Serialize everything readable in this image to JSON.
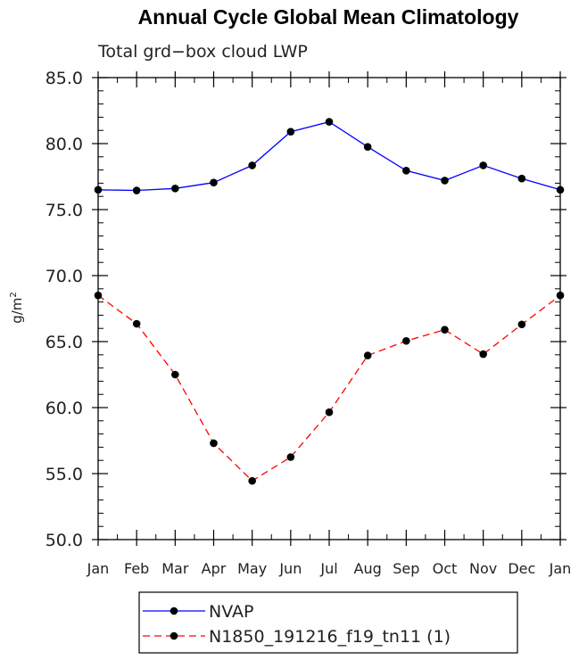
{
  "chart_data": {
    "type": "line",
    "title": "Annual Cycle Global Mean Climatology",
    "subtitle": "Total grd−box cloud LWP",
    "ylabel_base": "g/m",
    "ylabel_sup": "2",
    "xlabel": "",
    "categories": [
      "Jan",
      "Feb",
      "Mar",
      "Apr",
      "May",
      "Jun",
      "Jul",
      "Aug",
      "Sep",
      "Oct",
      "Nov",
      "Dec",
      "Jan"
    ],
    "ylim": [
      50.0,
      85.0
    ],
    "yticks": [
      "50.0",
      "55.0",
      "60.0",
      "65.0",
      "70.0",
      "75.0",
      "80.0",
      "85.0"
    ],
    "series": [
      {
        "name": "NVAP",
        "color": "#0000ff",
        "style": "solid",
        "values": [
          76.5,
          76.45,
          76.6,
          77.05,
          78.35,
          80.9,
          81.65,
          79.75,
          77.95,
          77.2,
          78.35,
          77.35,
          76.5
        ]
      },
      {
        "name": "N1850_191216_f19_tn11 (1)",
        "color": "#ff0000",
        "style": "dashed",
        "values": [
          68.5,
          66.35,
          62.5,
          57.3,
          54.45,
          56.25,
          59.65,
          63.95,
          65.05,
          65.9,
          64.05,
          66.3,
          68.5
        ]
      }
    ]
  }
}
